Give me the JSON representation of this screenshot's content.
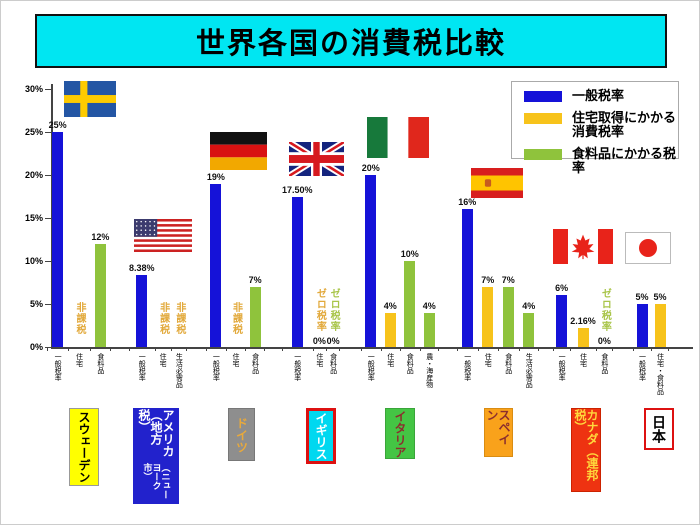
{
  "title": "世界各国の消費税比較",
  "legend": {
    "items": [
      {
        "name": "general",
        "label": "一般税率",
        "color": "#1512D8"
      },
      {
        "name": "housing",
        "label": "住宅取得にかかる消費税率",
        "color": "#F7C31B"
      },
      {
        "name": "food",
        "label": "食料品にかかる税率",
        "color": "#8FC33C"
      }
    ]
  },
  "colors": {
    "blue": "#1512D8",
    "yellow": "#F7C31B",
    "green": "#8FC33C",
    "note_yellow": "#E2A93B",
    "note_green": "#A9C54A",
    "title_bg": "#00E6F2"
  },
  "chart_data": {
    "type": "bar",
    "title": "世界各国の消費税比較",
    "ylim": [
      0,
      30
    ],
    "yticks": [
      "0%",
      "5%",
      "10%",
      "15%",
      "20%",
      "25%",
      "30%"
    ],
    "legend_position": "top-right",
    "grid": false,
    "groups": [
      {
        "country": "スウェーデン",
        "flag": "sweden",
        "box": {
          "bg": "#FFFF00",
          "fg": "#000000",
          "border": "#999999"
        },
        "columns": [
          {
            "axis_label": "一般税率",
            "series": "general",
            "color": "blue",
            "value": 25,
            "value_label": "25%"
          },
          {
            "axis_label": "住宅",
            "series": "housing",
            "note": "非課税",
            "note_color": "note_yellow"
          },
          {
            "axis_label": "食料品",
            "series": "food",
            "color": "green",
            "value": 12,
            "value_label": "12%"
          }
        ]
      },
      {
        "country": "アメリカ（地方税）",
        "country_sub": "（ニューヨーク市）",
        "flag": "usa",
        "box": {
          "bg": "#2222CC",
          "fg": "#FFFFFF",
          "border": "#2222CC"
        },
        "columns": [
          {
            "axis_label": "一般税率",
            "series": "general",
            "color": "blue",
            "value": 8.38,
            "value_label": "8.38%"
          },
          {
            "axis_label": "住宅",
            "series": "housing",
            "note": "非課税",
            "note_color": "note_yellow"
          },
          {
            "axis_label": "生活必需品",
            "series": "food",
            "note": "非課税",
            "note_color": "note_yellow"
          }
        ]
      },
      {
        "country": "ドイツ",
        "flag": "germany",
        "box": {
          "bg": "#8E8E8E",
          "fg": "#E8A93C",
          "border": "#777777"
        },
        "columns": [
          {
            "axis_label": "一般税率",
            "series": "general",
            "color": "blue",
            "value": 19,
            "value_label": "19%"
          },
          {
            "axis_label": "住宅",
            "series": "housing",
            "note": "非課税",
            "note_color": "note_yellow"
          },
          {
            "axis_label": "食料品",
            "series": "food",
            "color": "green",
            "value": 7,
            "value_label": "7%"
          }
        ]
      },
      {
        "country": "イギリス",
        "flag": "uk",
        "box": {
          "bg": "#00D8F0",
          "fg": "#FFFFFF",
          "border": "#DD1111"
        },
        "columns": [
          {
            "axis_label": "一般税率",
            "series": "general",
            "color": "blue",
            "value": 17.5,
            "value_label": "17.50%"
          },
          {
            "axis_label": "住宅",
            "series": "housing",
            "note": "ゼロ税率",
            "note_color": "note_yellow",
            "value": 0,
            "value_label": "0%"
          },
          {
            "axis_label": "食料品",
            "series": "food",
            "note": "ゼロ税率",
            "note_color": "note_green",
            "value": 0,
            "value_label": "0%"
          }
        ]
      },
      {
        "country": "イタリア",
        "flag": "italy",
        "box": {
          "bg": "#44C544",
          "fg": "#8B2E2E",
          "border": "#3AA53A"
        },
        "columns": [
          {
            "axis_label": "一般税率",
            "series": "general",
            "color": "blue",
            "value": 20,
            "value_label": "20%"
          },
          {
            "axis_label": "住宅",
            "series": "housing",
            "color": "yellow",
            "value": 4,
            "value_label": "4%"
          },
          {
            "axis_label": "食料品",
            "series": "food",
            "color": "green",
            "value": 10,
            "value_label": "10%"
          },
          {
            "axis_label": "農・海産物",
            "series": "food",
            "color": "green",
            "value": 4,
            "value_label": "4%"
          }
        ]
      },
      {
        "country": "スペイン",
        "flag": "spain",
        "box": {
          "bg": "#F9A21B",
          "fg": "#8B2E2E",
          "border": "#D98C12"
        },
        "columns": [
          {
            "axis_label": "一般税率",
            "series": "general",
            "color": "blue",
            "value": 16,
            "value_label": "16%"
          },
          {
            "axis_label": "住宅",
            "series": "housing",
            "color": "yellow",
            "value": 7,
            "value_label": "7%"
          },
          {
            "axis_label": "食料品",
            "series": "food",
            "color": "green",
            "value": 7,
            "value_label": "7%"
          },
          {
            "axis_label": "生活必需品",
            "series": "food",
            "color": "green",
            "value": 4,
            "value_label": "4%"
          }
        ]
      },
      {
        "country": "カナダ（連邦税）",
        "flag": "canada",
        "box": {
          "bg": "#EE3311",
          "fg": "#FFD83C",
          "border": "#CC2200"
        },
        "columns": [
          {
            "axis_label": "一般税率",
            "series": "general",
            "color": "blue",
            "value": 6,
            "value_label": "6%"
          },
          {
            "axis_label": "住宅",
            "series": "housing",
            "color": "yellow",
            "value": 2.16,
            "value_label": "2.16%"
          },
          {
            "axis_label": "食料品",
            "series": "food",
            "note": "ゼロ税率",
            "note_color": "note_green",
            "value": 0,
            "value_label": "0%"
          }
        ]
      },
      {
        "country": "日本",
        "flag": "japan",
        "box": {
          "bg": "#FFFFFF",
          "fg": "#000000",
          "border": "#DD1111"
        },
        "columns": [
          {
            "axis_label": "一般税率",
            "series": "general",
            "color": "blue",
            "value": 5,
            "value_label": "5%"
          },
          {
            "axis_label": "住宅・食料品",
            "series": "housing",
            "color": "yellow",
            "value": 5,
            "value_label": "5%"
          }
        ]
      }
    ]
  }
}
